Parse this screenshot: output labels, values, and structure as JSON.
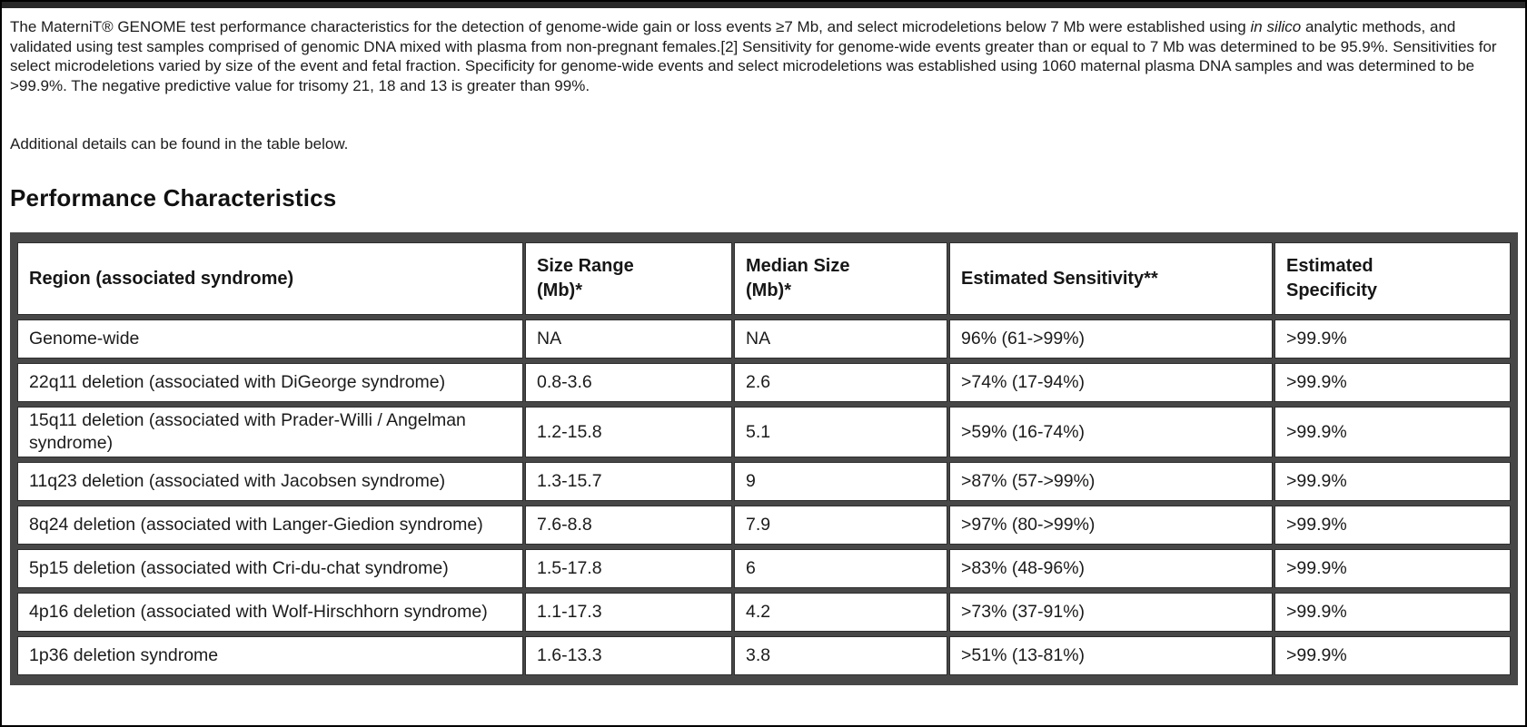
{
  "intro": {
    "before_italic": "The MaterniT® GENOME test performance characteristics for the detection of genome-wide gain or loss events ≥7 Mb, and select microdeletions below 7 Mb were established using ",
    "italic": "in silico",
    "after_italic": " analytic methods, and validated using test samples comprised of genomic DNA mixed with plasma from non-pregnant females.[2]  Sensitivity for genome-wide events greater than or equal to 7 Mb was determined to be 95.9%. Sensitivities for select microdeletions varied by size of the event and fetal fraction. Specificity for genome-wide events and select microdeletions was established using 1060 maternal plasma DNA samples and was determined to be >99.9%. The negative predictive value for trisomy 21, 18 and 13 is greater than 99%."
  },
  "note": "Additional details can be found in the table below.",
  "section_title": "Performance Characteristics",
  "table": {
    "headers": [
      "Region (associated syndrome)",
      "Size Range\n(Mb)*",
      "Median Size\n(Mb)*",
      "Estimated Sensitivity**",
      "Estimated\nSpecificity"
    ],
    "rows": [
      {
        "region": "Genome-wide",
        "size_range": "NA",
        "median_size": "NA",
        "sensitivity": "96% (61->99%)",
        "specificity": ">99.9%"
      },
      {
        "region": "22q11 deletion (associated with DiGeorge syndrome)",
        "size_range": "0.8-3.6",
        "median_size": "2.6",
        "sensitivity": ">74% (17-94%)",
        "specificity": ">99.9%"
      },
      {
        "region": "15q11 deletion (associated with Prader-Willi / Angelman syndrome)",
        "size_range": "1.2-15.8",
        "median_size": "5.1",
        "sensitivity": ">59% (16-74%)",
        "specificity": ">99.9%"
      },
      {
        "region": "11q23 deletion (associated with Jacobsen syndrome)",
        "size_range": "1.3-15.7",
        "median_size": "9",
        "sensitivity": ">87% (57->99%)",
        "specificity": ">99.9%"
      },
      {
        "region": "8q24 deletion (associated with Langer-Giedion syndrome)",
        "size_range": "7.6-8.8",
        "median_size": "7.9",
        "sensitivity": ">97% (80->99%)",
        "specificity": ">99.9%"
      },
      {
        "region": "5p15 deletion (associated with Cri-du-chat syndrome)",
        "size_range": "1.5-17.8",
        "median_size": "6",
        "sensitivity": ">83% (48-96%)",
        "specificity": ">99.9%"
      },
      {
        "region": "4p16 deletion (associated with Wolf-Hirschhorn syndrome)",
        "size_range": "1.1-17.3",
        "median_size": "4.2",
        "sensitivity": ">73% (37-91%)",
        "specificity": ">99.9%"
      },
      {
        "region": "1p36 deletion syndrome",
        "size_range": "1.6-13.3",
        "median_size": "3.8",
        "sensitivity": ">51% (13-81%)",
        "specificity": ">99.9%"
      }
    ]
  },
  "colors": {
    "page_border": "#000000",
    "top_bar": "#282828",
    "table_grid": "#474747",
    "cell_border": "#2d2d2d",
    "cell_background": "#ffffff",
    "text": "#1b1b1b"
  }
}
